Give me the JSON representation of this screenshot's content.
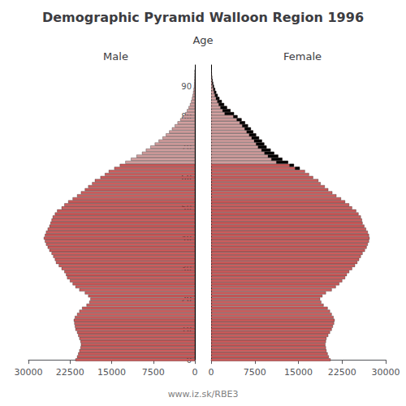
{
  "chart_data": {
    "type": "bar",
    "orientation": "horizontal",
    "title": "Demographic Pyramid Walloon Region 1996",
    "ylabel": "Age",
    "source": "www.iz.sk/RBE3",
    "categories": [
      0,
      1,
      2,
      3,
      4,
      5,
      6,
      7,
      8,
      9,
      10,
      11,
      12,
      13,
      14,
      15,
      16,
      17,
      18,
      19,
      20,
      21,
      22,
      23,
      24,
      25,
      26,
      27,
      28,
      29,
      30,
      31,
      32,
      33,
      34,
      35,
      36,
      37,
      38,
      39,
      40,
      41,
      42,
      43,
      44,
      45,
      46,
      47,
      48,
      49,
      50,
      51,
      52,
      53,
      54,
      55,
      56,
      57,
      58,
      59,
      60,
      61,
      62,
      63,
      64,
      65,
      66,
      67,
      68,
      69,
      70,
      71,
      72,
      73,
      74,
      75,
      76,
      77,
      78,
      79,
      80,
      81,
      82,
      83,
      84,
      85,
      86,
      87,
      88,
      89,
      90,
      91,
      92,
      93,
      94,
      95
    ],
    "series": [
      {
        "name": "Male",
        "values": [
          21500,
          21200,
          21000,
          20800,
          20600,
          20500,
          20600,
          20800,
          21000,
          21200,
          21500,
          21600,
          21700,
          21800,
          21600,
          21200,
          20800,
          20300,
          19500,
          19000,
          18800,
          19200,
          19800,
          20800,
          21500,
          22000,
          22500,
          23000,
          23200,
          23500,
          24000,
          24500,
          25000,
          25200,
          25500,
          25800,
          26200,
          26500,
          26800,
          27000,
          27200,
          27000,
          26800,
          26500,
          26200,
          26000,
          25800,
          25600,
          25200,
          24800,
          24000,
          23500,
          22800,
          22000,
          21200,
          20500,
          19800,
          19200,
          18500,
          18000,
          17000,
          16200,
          15500,
          14500,
          13500,
          12500,
          11500,
          10500,
          9500,
          8800,
          8000,
          7200,
          6500,
          5800,
          5200,
          4600,
          4100,
          3600,
          3100,
          2600,
          2100,
          1700,
          1400,
          1100,
          850,
          650,
          500,
          380,
          280,
          200,
          130,
          90,
          60,
          35,
          20,
          10
        ],
        "colors": [
          "#cd5c5c",
          "#cd5c5c",
          "#cd5c5c",
          "#cd5c5c",
          "#cd5c5c",
          "#cd5c5c",
          "#cd5c5c",
          "#cd5c5c",
          "#cd5c5c",
          "#cd5c5c",
          "#cd5c5c",
          "#cd5c5c",
          "#cd5c5c",
          "#cd5c5c",
          "#cd5c5c",
          "#cd5c5c",
          "#cd5c5c",
          "#cd5c5c",
          "#cd5c5c",
          "#cd5c5c",
          "#cd5c5c",
          "#cd5c5c",
          "#cd5c5c",
          "#cd5c5c",
          "#cd5c5c",
          "#cd5c5c",
          "#cd5c5c",
          "#cd5c5c",
          "#cd5c5c",
          "#cd5c5c",
          "#cd5c5c",
          "#cd5c5c",
          "#cd5c5c",
          "#cd5c5c",
          "#cd5c5c",
          "#cd5c5c",
          "#cd5c5c",
          "#cd5c5c",
          "#cd5c5c",
          "#cd5c5c",
          "#cd5c5c",
          "#cd5c5c",
          "#cd5c5c",
          "#cd5c5c",
          "#cd5c5c",
          "#cd5c5c",
          "#cd5c5c",
          "#cd5c5c",
          "#cd5c5c",
          "#cd5c5c",
          "#cd5c5c",
          "#cd5c5c",
          "#cd5c5c",
          "#cd5c5c",
          "#cd5c5c",
          "#cd5c5c",
          "#cd5c5c",
          "#cd5c5c",
          "#cd5c5c",
          "#cd5c5c",
          "#cd5c5c",
          "#cd5c5c",
          "#cd5c5c",
          "#cd5c5c",
          "#cd5c5c",
          "#d4a0a0",
          "#d4a0a0",
          "#d4a0a0",
          "#d4a0a0",
          "#d4a0a0",
          "#d4a0a0",
          "#d4a0a0",
          "#d4a0a0",
          "#d4a0a0",
          "#d4a0a0",
          "#d4a0a0",
          "#d4a0a0",
          "#d4a0a0",
          "#d4a0a0",
          "#d4a0a0",
          "#d4a0a0",
          "#d4a0a0",
          "#d4a0a0",
          "#d4a0a0",
          "#d4a0a0",
          "#d4a0a0",
          "#d4a0a0",
          "#d4a0a0",
          "#d4a0a0",
          "#d4a0a0",
          "#d4a0a0",
          "#d4a0a0",
          "#d4a0a0",
          "#d4a0a0",
          "#d4a0a0",
          "#d4a0a0"
        ]
      },
      {
        "name": "Female",
        "values": [
          20500,
          20200,
          20000,
          19800,
          19700,
          19600,
          19700,
          19800,
          20100,
          20400,
          20700,
          20900,
          21100,
          21200,
          21000,
          20700,
          20400,
          20000,
          19300,
          18900,
          18700,
          19100,
          19700,
          20700,
          21400,
          22000,
          22500,
          23000,
          23300,
          23700,
          24200,
          24700,
          25100,
          25400,
          25700,
          26000,
          26400,
          26700,
          26900,
          27100,
          27200,
          27100,
          26900,
          26600,
          26300,
          26000,
          25900,
          25700,
          25300,
          24900,
          24200,
          23700,
          23000,
          22300,
          21500,
          20800,
          20100,
          19500,
          18800,
          18400,
          17500,
          16800,
          16100,
          15200,
          14200,
          13200,
          12200,
          11500,
          10800,
          10200,
          9500,
          9100,
          8700,
          8200,
          7700,
          7200,
          6800,
          6300,
          5800,
          5200,
          4500,
          3900,
          3300,
          2700,
          2200,
          1800,
          1400,
          1100,
          850,
          650,
          450,
          320,
          220,
          150,
          90,
          50
        ],
        "colors": [
          "#cd5c5c",
          "#cd5c5c",
          "#cd5c5c",
          "#cd5c5c",
          "#cd5c5c",
          "#cd5c5c",
          "#cd5c5c",
          "#cd5c5c",
          "#cd5c5c",
          "#cd5c5c",
          "#cd5c5c",
          "#cd5c5c",
          "#cd5c5c",
          "#cd5c5c",
          "#cd5c5c",
          "#cd5c5c",
          "#cd5c5c",
          "#cd5c5c",
          "#cd5c5c",
          "#cd5c5c",
          "#cd5c5c",
          "#cd5c5c",
          "#cd5c5c",
          "#cd5c5c",
          "#cd5c5c",
          "#cd5c5c",
          "#cd5c5c",
          "#cd5c5c",
          "#cd5c5c",
          "#cd5c5c",
          "#cd5c5c",
          "#cd5c5c",
          "#cd5c5c",
          "#cd5c5c",
          "#cd5c5c",
          "#cd5c5c",
          "#cd5c5c",
          "#cd5c5c",
          "#cd5c5c",
          "#cd5c5c",
          "#cd5c5c",
          "#cd5c5c",
          "#cd5c5c",
          "#cd5c5c",
          "#cd5c5c",
          "#cd5c5c",
          "#cd5c5c",
          "#cd5c5c",
          "#cd5c5c",
          "#cd5c5c",
          "#cd5c5c",
          "#cd5c5c",
          "#cd5c5c",
          "#cd5c5c",
          "#cd5c5c",
          "#cd5c5c",
          "#cd5c5c",
          "#cd5c5c",
          "#cd5c5c",
          "#cd5c5c",
          "#cd5c5c",
          "#cd5c5c",
          "#cd5c5c",
          "#cd5c5c",
          "#cd5c5c",
          "#d4a0a0",
          "#d4a0a0",
          "#d4a0a0",
          "#d4a0a0",
          "#d4a0a0",
          "#d4a0a0",
          "#d4a0a0",
          "#d4a0a0",
          "#d4a0a0",
          "#d4a0a0",
          "#d4a0a0",
          "#d4a0a0",
          "#d4a0a0",
          "#d4a0a0",
          "#d4a0a0",
          "#d4a0a0",
          "#d4a0a0",
          "#d4a0a0",
          "#d4a0a0",
          "#d4a0a0",
          "#d4a0a0",
          "#d4a0a0",
          "#d4a0a0",
          "#d4a0a0",
          "#d4a0a0",
          "#d4a0a0",
          "#d4a0a0",
          "#d4a0a0",
          "#d4a0a0",
          "#d4a0a0",
          "#d4a0a0"
        ],
        "overlay": {
          "color": "black",
          "values": [
            null,
            null,
            null,
            null,
            null,
            null,
            null,
            null,
            null,
            null,
            null,
            null,
            null,
            null,
            null,
            null,
            null,
            null,
            null,
            null,
            null,
            null,
            null,
            null,
            null,
            null,
            null,
            null,
            null,
            null,
            null,
            null,
            null,
            null,
            null,
            null,
            null,
            null,
            null,
            null,
            null,
            null,
            null,
            null,
            null,
            null,
            null,
            null,
            null,
            null,
            null,
            null,
            null,
            null,
            null,
            null,
            null,
            null,
            null,
            null,
            null,
            null,
            null,
            760,
            710,
            1980,
            1830,
            1725,
            1620,
            1530,
            1425,
            1365,
            1305,
            1230,
            1155,
            1080,
            1020,
            945,
            870,
            780,
            675,
            1560,
            1320,
            1080,
            880,
            720,
            560,
            440,
            340,
            260,
            180,
            128,
            88,
            60,
            36,
            20
          ]
        }
      }
    ],
    "xlim": [
      0,
      30000
    ],
    "xticks": [
      0,
      7500,
      15000,
      22500,
      30000
    ],
    "ylim": [
      -0.5,
      97
    ],
    "yticks": [
      0,
      10,
      20,
      30,
      40,
      50,
      60,
      70,
      80,
      90
    ],
    "grid": false
  }
}
